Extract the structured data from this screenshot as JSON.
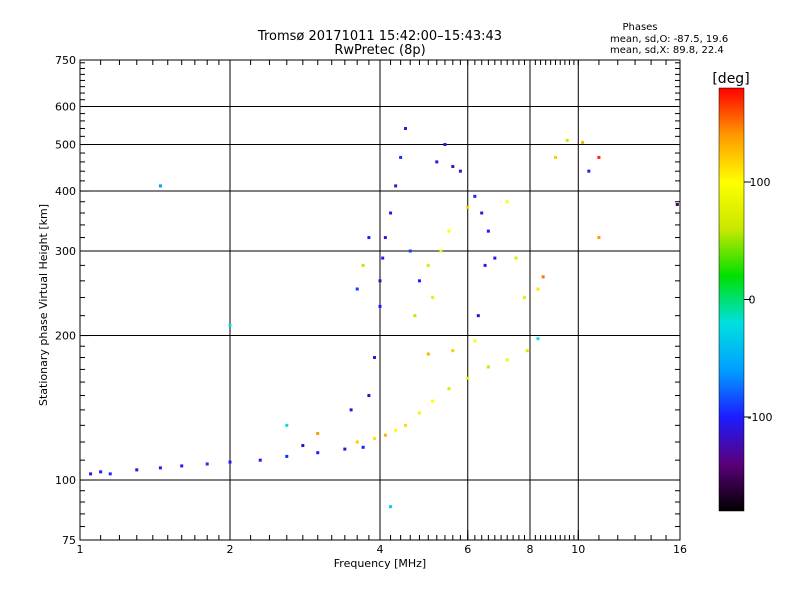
{
  "chart_data": {
    "type": "scatter",
    "title": "Tromsø 20171011 15:42:00–15:43:43",
    "subtitle": "RwPretec (8p)",
    "xlabel": "Frequency [MHz]",
    "ylabel": "Stationary phase Virtual Height [km]",
    "x_scale": "log",
    "y_scale": "log",
    "xlim": [
      1,
      16
    ],
    "ylim": [
      75,
      750
    ],
    "x_ticks": [
      {
        "value": 1,
        "label": "1"
      },
      {
        "value": 2,
        "label": "2"
      },
      {
        "value": 4,
        "label": "4"
      },
      {
        "value": 6,
        "label": "6"
      },
      {
        "value": 8,
        "label": "8"
      },
      {
        "value": 10,
        "label": "10"
      },
      {
        "value": 16,
        "label": "16"
      }
    ],
    "y_ticks": [
      {
        "value": 75,
        "label": "75"
      },
      {
        "value": 100,
        "label": "100"
      },
      {
        "value": 200,
        "label": "200"
      },
      {
        "value": 300,
        "label": "300"
      },
      {
        "value": 400,
        "label": "400"
      },
      {
        "value": 500,
        "label": "500"
      },
      {
        "value": 600,
        "label": "600"
      },
      {
        "value": 750,
        "label": "750"
      }
    ],
    "grid": true,
    "grid_x": [
      2,
      4,
      6,
      8,
      10
    ],
    "grid_y": [
      100,
      200,
      300,
      400,
      500,
      600
    ],
    "phase_stats": {
      "heading": "Phases",
      "line_o": "mean, sd,O: -87.5, 19.6",
      "line_x": "mean, sd,X:  89.8, 22.4"
    },
    "colorbar": {
      "label": "[deg]",
      "range": [
        -180,
        180
      ],
      "ticks": [
        {
          "value": 100,
          "label": "100"
        },
        {
          "value": 0,
          "label": "0"
        },
        {
          "value": -100,
          "label": "-100"
        }
      ],
      "colors": [
        "#000000",
        "#5a007a",
        "#1c1cff",
        "#00a0ff",
        "#00e0e0",
        "#00e000",
        "#c8e800",
        "#ffff00",
        "#ff9900",
        "#ff0000"
      ]
    },
    "points": [
      {
        "x": 1.05,
        "y": 103,
        "phase": -105
      },
      {
        "x": 1.1,
        "y": 104,
        "phase": -100
      },
      {
        "x": 1.15,
        "y": 103,
        "phase": -95
      },
      {
        "x": 1.3,
        "y": 105,
        "phase": -110
      },
      {
        "x": 1.45,
        "y": 106,
        "phase": -100
      },
      {
        "x": 1.6,
        "y": 107,
        "phase": -105
      },
      {
        "x": 1.8,
        "y": 108,
        "phase": -95
      },
      {
        "x": 2.0,
        "y": 109,
        "phase": -100
      },
      {
        "x": 2.3,
        "y": 110,
        "phase": -105
      },
      {
        "x": 2.6,
        "y": 112,
        "phase": -95
      },
      {
        "x": 3.0,
        "y": 114,
        "phase": -100
      },
      {
        "x": 3.4,
        "y": 116,
        "phase": -110
      },
      {
        "x": 3.7,
        "y": 117,
        "phase": -100
      },
      {
        "x": 1.45,
        "y": 410,
        "phase": -60
      },
      {
        "x": 2.0,
        "y": 210,
        "phase": -20
      },
      {
        "x": 3.6,
        "y": 120,
        "phase": 120
      },
      {
        "x": 3.9,
        "y": 122,
        "phase": 110
      },
      {
        "x": 4.1,
        "y": 124,
        "phase": 130
      },
      {
        "x": 4.3,
        "y": 127,
        "phase": 100
      },
      {
        "x": 4.5,
        "y": 130,
        "phase": 115
      },
      {
        "x": 4.8,
        "y": 138,
        "phase": 90
      },
      {
        "x": 5.1,
        "y": 146,
        "phase": 100
      },
      {
        "x": 5.5,
        "y": 155,
        "phase": 70
      },
      {
        "x": 6.0,
        "y": 163,
        "phase": 80
      },
      {
        "x": 6.6,
        "y": 172,
        "phase": 60
      },
      {
        "x": 7.2,
        "y": 178,
        "phase": 90
      },
      {
        "x": 7.9,
        "y": 186,
        "phase": 70
      },
      {
        "x": 8.3,
        "y": 197,
        "phase": -20
      },
      {
        "x": 5.0,
        "y": 183,
        "phase": 130
      },
      {
        "x": 5.6,
        "y": 186,
        "phase": 120
      },
      {
        "x": 6.2,
        "y": 195,
        "phase": 100
      },
      {
        "x": 3.5,
        "y": 140,
        "phase": -110
      },
      {
        "x": 3.8,
        "y": 150,
        "phase": -120
      },
      {
        "x": 3.9,
        "y": 180,
        "phase": -110
      },
      {
        "x": 4.0,
        "y": 230,
        "phase": -100
      },
      {
        "x": 4.0,
        "y": 260,
        "phase": -115
      },
      {
        "x": 4.05,
        "y": 290,
        "phase": -105
      },
      {
        "x": 4.1,
        "y": 320,
        "phase": -110
      },
      {
        "x": 4.2,
        "y": 360,
        "phase": -100
      },
      {
        "x": 4.3,
        "y": 410,
        "phase": -110
      },
      {
        "x": 4.4,
        "y": 470,
        "phase": -95
      },
      {
        "x": 4.5,
        "y": 540,
        "phase": -105
      },
      {
        "x": 3.6,
        "y": 250,
        "phase": -90
      },
      {
        "x": 3.7,
        "y": 280,
        "phase": 60
      },
      {
        "x": 3.8,
        "y": 320,
        "phase": -100
      },
      {
        "x": 4.6,
        "y": 300,
        "phase": -90
      },
      {
        "x": 4.8,
        "y": 260,
        "phase": -100
      },
      {
        "x": 5.2,
        "y": 460,
        "phase": -105
      },
      {
        "x": 5.4,
        "y": 500,
        "phase": -110
      },
      {
        "x": 5.6,
        "y": 450,
        "phase": -115
      },
      {
        "x": 5.8,
        "y": 440,
        "phase": -110
      },
      {
        "x": 5.5,
        "y": 330,
        "phase": 100
      },
      {
        "x": 5.3,
        "y": 300,
        "phase": 90
      },
      {
        "x": 5.0,
        "y": 280,
        "phase": 70
      },
      {
        "x": 4.7,
        "y": 220,
        "phase": 60
      },
      {
        "x": 5.1,
        "y": 240,
        "phase": 80
      },
      {
        "x": 6.0,
        "y": 370,
        "phase": 120
      },
      {
        "x": 6.2,
        "y": 390,
        "phase": -100
      },
      {
        "x": 6.4,
        "y": 360,
        "phase": -110
      },
      {
        "x": 6.6,
        "y": 330,
        "phase": -100
      },
      {
        "x": 6.5,
        "y": 280,
        "phase": -105
      },
      {
        "x": 6.8,
        "y": 290,
        "phase": -110
      },
      {
        "x": 6.3,
        "y": 220,
        "phase": -115
      },
      {
        "x": 7.2,
        "y": 380,
        "phase": 100
      },
      {
        "x": 7.5,
        "y": 290,
        "phase": 70
      },
      {
        "x": 7.8,
        "y": 240,
        "phase": 80
      },
      {
        "x": 8.3,
        "y": 250,
        "phase": 110
      },
      {
        "x": 8.5,
        "y": 265,
        "phase": 150
      },
      {
        "x": 9.0,
        "y": 470,
        "phase": 120
      },
      {
        "x": 9.5,
        "y": 510,
        "phase": 60
      },
      {
        "x": 10.2,
        "y": 505,
        "phase": 130
      },
      {
        "x": 11.0,
        "y": 470,
        "phase": 170
      },
      {
        "x": 11.0,
        "y": 320,
        "phase": 140
      },
      {
        "x": 10.5,
        "y": 440,
        "phase": -100
      },
      {
        "x": 15.8,
        "y": 375,
        "phase": -150
      },
      {
        "x": 4.2,
        "y": 88,
        "phase": -30
      },
      {
        "x": 3.0,
        "y": 125,
        "phase": 140
      },
      {
        "x": 2.6,
        "y": 130,
        "phase": -20
      },
      {
        "x": 2.8,
        "y": 118,
        "phase": -120
      }
    ]
  }
}
